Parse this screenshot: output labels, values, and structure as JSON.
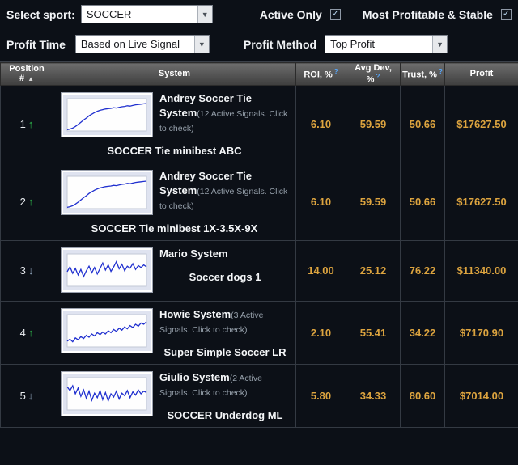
{
  "colors": {
    "background": "#0c1017",
    "accent_orange": "#dda43f",
    "up_green": "#2fbe4e",
    "down_blue_gray": "#93a9c0",
    "info_blue": "#57a9ff",
    "chart_line_blue": "#2030cf",
    "header_gray": "#555555"
  },
  "toolbar": {
    "select_sport": {
      "label": "Select sport:",
      "value": "SOCCER"
    },
    "active_only": {
      "label": "Active Only",
      "checked": true
    },
    "most_profitable": {
      "label": "Most Profitable & Stable",
      "checked": true
    },
    "profit_time": {
      "label": "Profit Time",
      "value": "Based on Live Signal"
    },
    "profit_method": {
      "label": "Profit Method",
      "value": "Top Profit"
    }
  },
  "table": {
    "headers": {
      "position": "Position #",
      "sort_indicator": "▲",
      "system": "System",
      "roi": "ROI, %",
      "avg_dev": "Avg Dev, %",
      "trust": "Trust, %",
      "profit": "Profit"
    },
    "rows": [
      {
        "position": "1",
        "trend": "up",
        "system_name": "Andrey Soccer Tie System",
        "signals_note": "(12 Active Signals. Click to check)",
        "subtitle": "SOCCER Tie minibest ABC",
        "roi": "6.10",
        "avg_dev": "59.59",
        "trust": "50.66",
        "profit": "$17627.50",
        "spark": [
          4,
          6,
          9,
          14,
          20,
          27,
          34,
          40,
          47,
          52,
          57,
          61,
          64,
          66,
          68,
          69,
          70,
          72,
          71,
          73,
          75,
          76,
          78,
          77,
          79,
          81,
          82,
          83,
          84,
          85
        ]
      },
      {
        "position": "2",
        "trend": "up",
        "system_name": "Andrey Soccer Tie System",
        "signals_note": "(12 Active Signals. Click to check)",
        "subtitle": "SOCCER Tie minibest 1X-3.5X-9X",
        "roi": "6.10",
        "avg_dev": "59.59",
        "trust": "50.66",
        "profit": "$17627.50",
        "spark": [
          4,
          6,
          9,
          14,
          20,
          27,
          34,
          40,
          47,
          52,
          57,
          61,
          64,
          66,
          68,
          69,
          70,
          72,
          71,
          73,
          75,
          76,
          78,
          77,
          79,
          81,
          82,
          83,
          84,
          85
        ]
      },
      {
        "position": "3",
        "trend": "down",
        "system_name": "Mario System",
        "signals_note": "",
        "subtitle": "Soccer dogs 1",
        "roi": "14.00",
        "avg_dev": "25.12",
        "trust": "76.22",
        "profit": "$11340.00",
        "spark": [
          45,
          60,
          40,
          55,
          35,
          52,
          30,
          48,
          62,
          42,
          58,
          38,
          55,
          72,
          50,
          66,
          46,
          60,
          76,
          54,
          68,
          48,
          62,
          56,
          70,
          52,
          64,
          58,
          66,
          60
        ]
      },
      {
        "position": "4",
        "trend": "up",
        "system_name": "Howie System",
        "signals_note": "(3 Active Signals. Click to check)",
        "subtitle": "Super Simple Soccer LR",
        "roi": "2.10",
        "avg_dev": "55.41",
        "trust": "34.22",
        "profit": "$7170.90",
        "spark": [
          18,
          24,
          16,
          28,
          22,
          32,
          26,
          36,
          30,
          40,
          34,
          44,
          38,
          46,
          40,
          50,
          44,
          54,
          48,
          58,
          52,
          62,
          56,
          66,
          60,
          70,
          64,
          74,
          70,
          78
        ]
      },
      {
        "position": "5",
        "trend": "down",
        "system_name": "Giulio System",
        "signals_note": "(2 Active Signals. Click to check)",
        "subtitle": "SOCCER Underdog ML",
        "roi": "5.80",
        "avg_dev": "34.33",
        "trust": "80.60",
        "profit": "$7014.00",
        "spark": [
          72,
          60,
          75,
          50,
          68,
          42,
          62,
          36,
          58,
          30,
          52,
          38,
          60,
          32,
          54,
          28,
          50,
          40,
          58,
          34,
          52,
          44,
          60,
          38,
          56,
          46,
          62,
          50,
          58,
          54
        ]
      }
    ]
  }
}
